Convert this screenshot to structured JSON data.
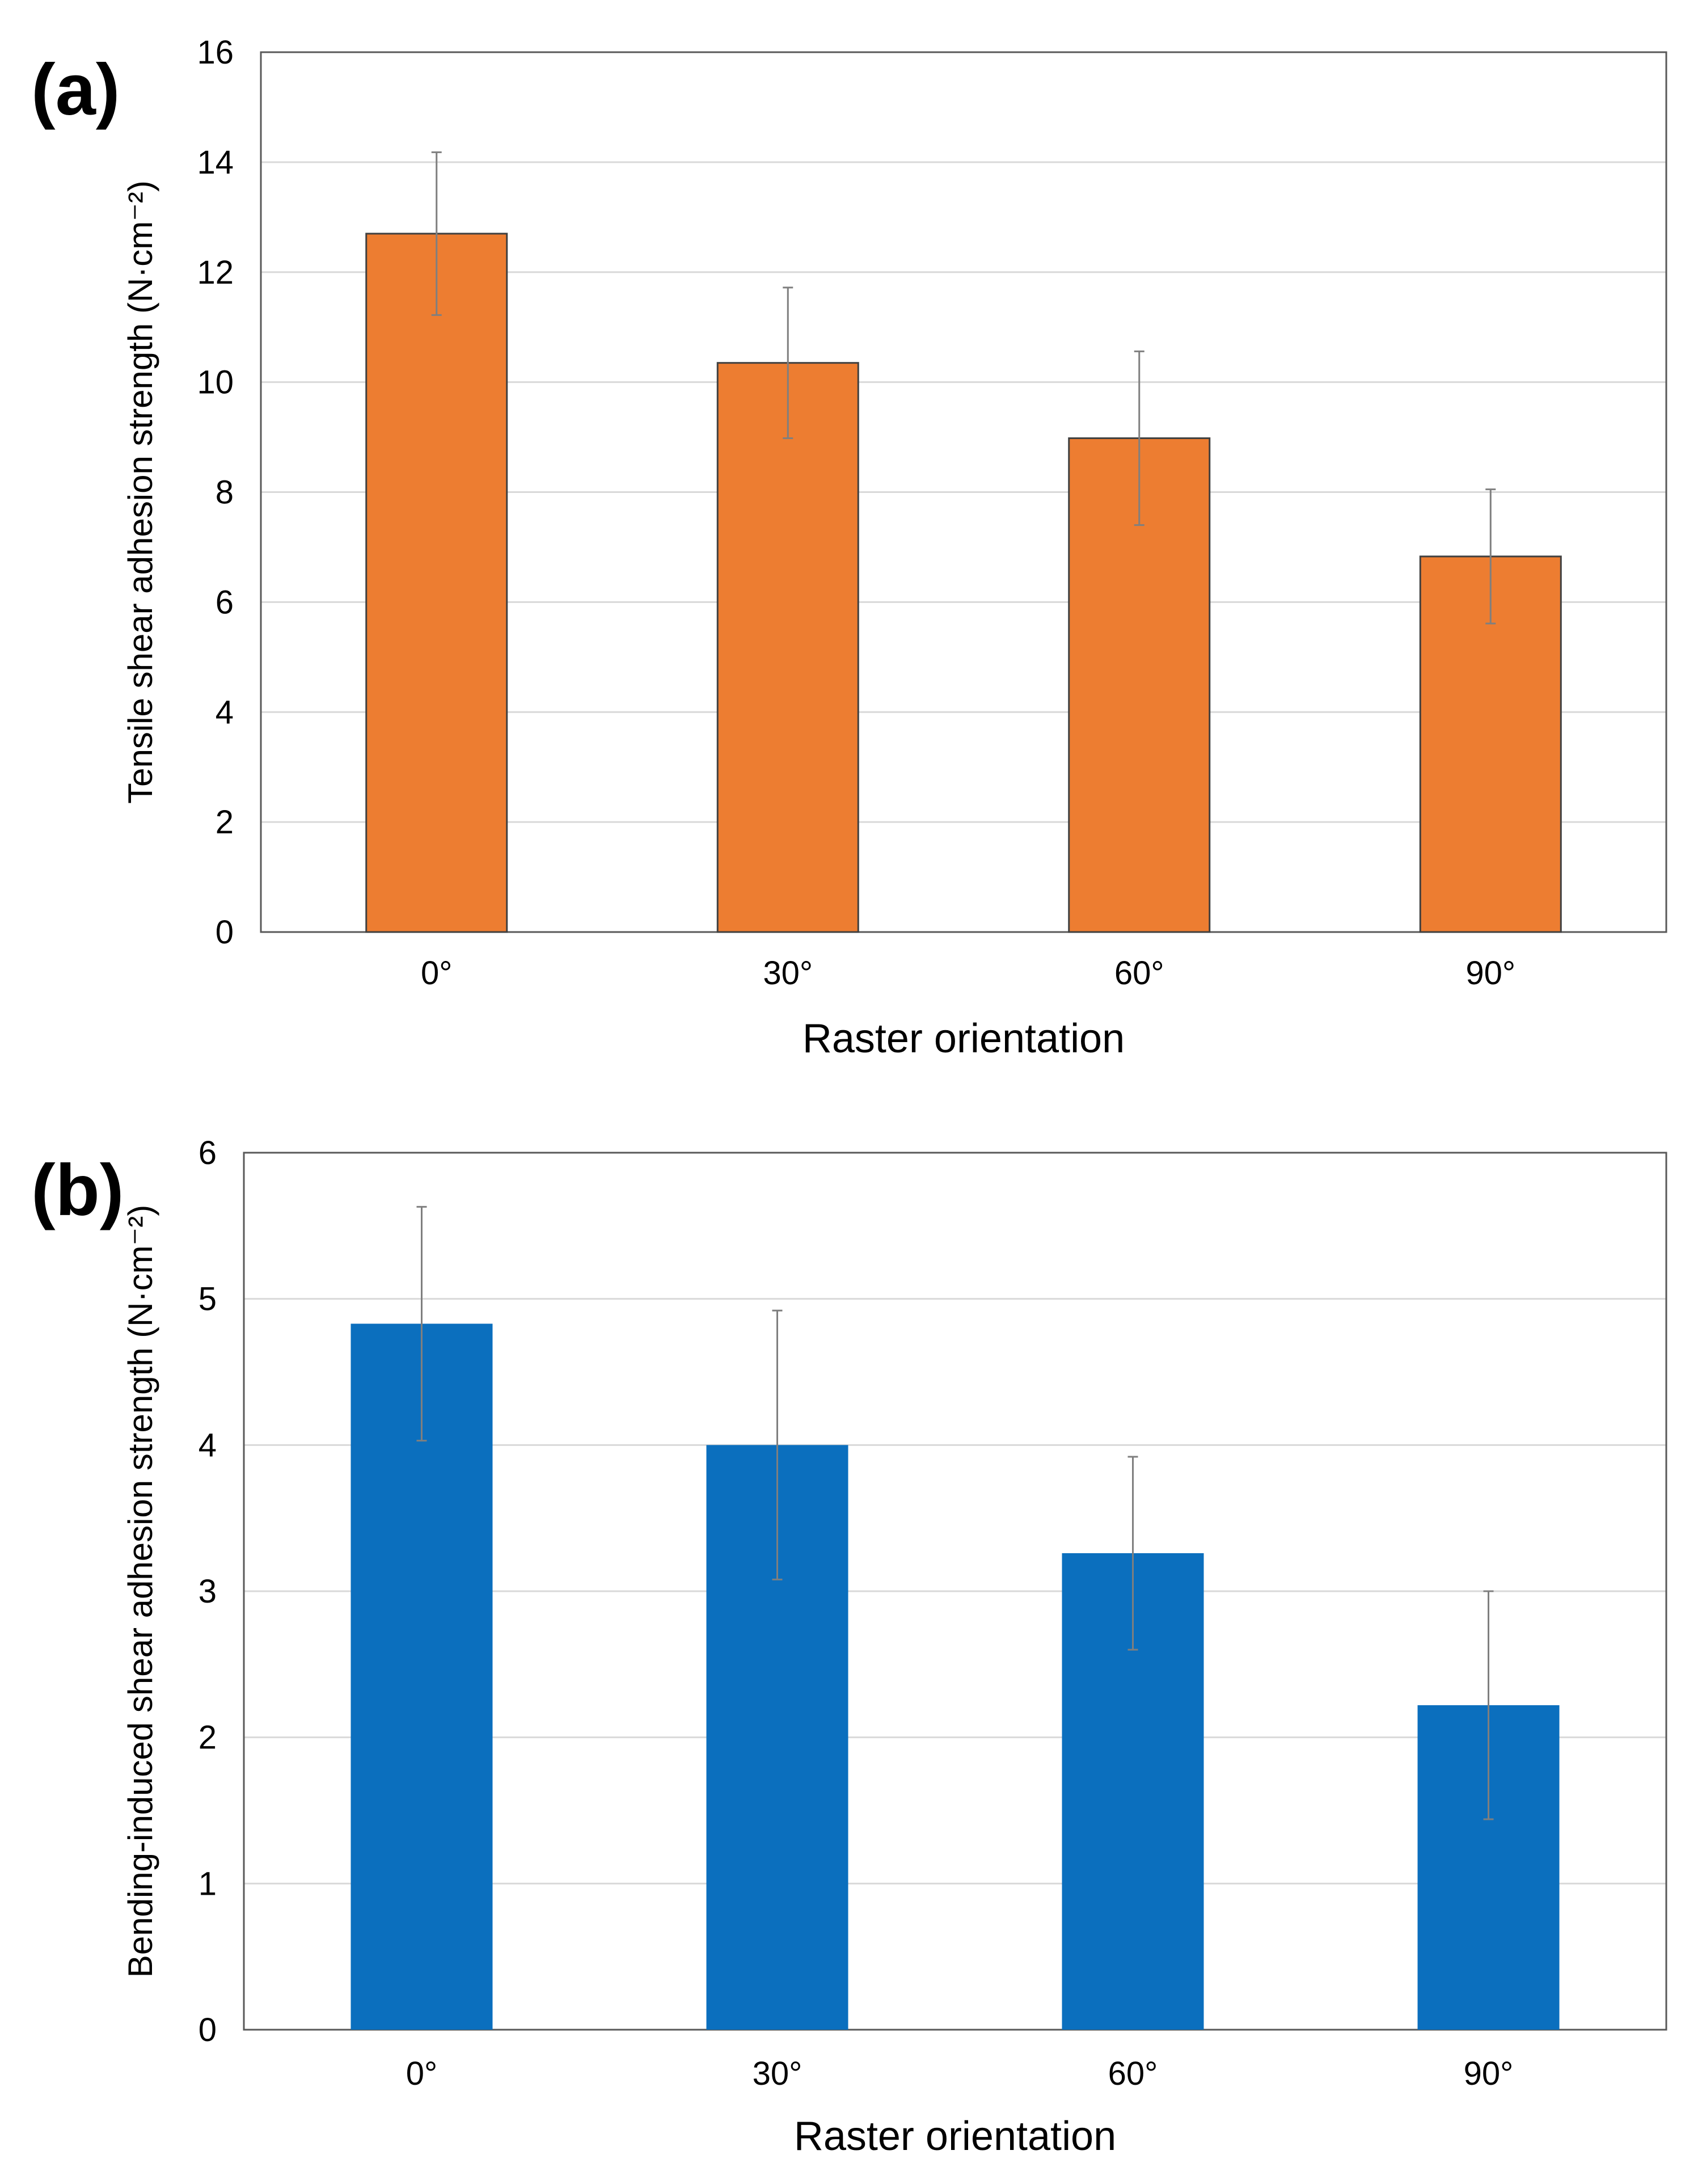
{
  "panels": {
    "a": {
      "label": "(a)"
    },
    "b": {
      "label": "(b)"
    }
  },
  "colors": {
    "orange": "#ED7D31",
    "blue": "#0B6FBE",
    "grid": "#D9D9D9",
    "frame": "#595959",
    "error": "#7F7F7F"
  },
  "chart_data": [
    {
      "type": "bar",
      "title": "",
      "categories": [
        "0°",
        "30°",
        "60°",
        "90°"
      ],
      "values": [
        12.7,
        10.35,
        8.98,
        6.83
      ],
      "errors": [
        1.48,
        1.37,
        1.58,
        1.22
      ],
      "xlabel": "Raster orientation",
      "ylabel": "Tensile shear adhesion strength (N·cm⁻²)",
      "ylim": [
        0,
        16
      ],
      "yticks": [
        0,
        2,
        4,
        6,
        8,
        10,
        12,
        14,
        16
      ],
      "grid": true,
      "bar_outline": true
    },
    {
      "type": "bar",
      "title": "",
      "categories": [
        "0°",
        "30°",
        "60°",
        "90°"
      ],
      "values": [
        4.83,
        4.0,
        3.26,
        2.22
      ],
      "errors": [
        0.8,
        0.92,
        0.66,
        0.78
      ],
      "xlabel": "Raster orientation",
      "ylabel": "Bending-induced shear adhesion strength (N·cm⁻²)",
      "ylim": [
        0,
        6
      ],
      "yticks": [
        0,
        1,
        2,
        3,
        4,
        5,
        6
      ],
      "grid": true,
      "bar_outline": false
    }
  ]
}
